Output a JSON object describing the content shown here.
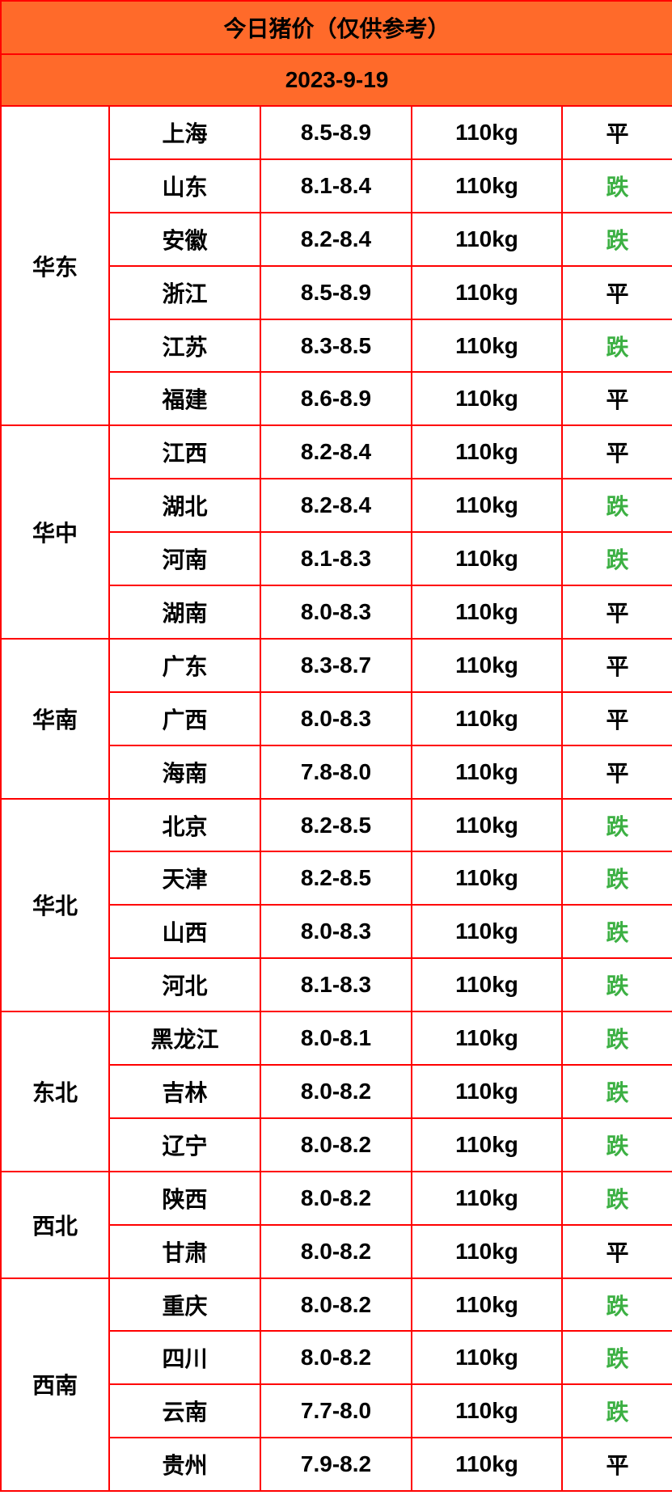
{
  "title": "今日猪价（仅供参考）",
  "date": "2023-9-19",
  "colors": {
    "header_bg": "#ff6a2a",
    "border": "#ff0000",
    "down": "#3cb043",
    "flat": "#000000"
  },
  "regions": [
    {
      "name": "华东",
      "rows": [
        {
          "province": "上海",
          "price": "8.5-8.9",
          "weight": "110kg",
          "trend": "平"
        },
        {
          "province": "山东",
          "price": "8.1-8.4",
          "weight": "110kg",
          "trend": "跌"
        },
        {
          "province": "安徽",
          "price": "8.2-8.4",
          "weight": "110kg",
          "trend": "跌"
        },
        {
          "province": "浙江",
          "price": "8.5-8.9",
          "weight": "110kg",
          "trend": "平"
        },
        {
          "province": "江苏",
          "price": "8.3-8.5",
          "weight": "110kg",
          "trend": "跌"
        },
        {
          "province": "福建",
          "price": "8.6-8.9",
          "weight": "110kg",
          "trend": "平"
        }
      ]
    },
    {
      "name": "华中",
      "rows": [
        {
          "province": "江西",
          "price": "8.2-8.4",
          "weight": "110kg",
          "trend": "平"
        },
        {
          "province": "湖北",
          "price": "8.2-8.4",
          "weight": "110kg",
          "trend": "跌"
        },
        {
          "province": "河南",
          "price": "8.1-8.3",
          "weight": "110kg",
          "trend": "跌"
        },
        {
          "province": "湖南",
          "price": "8.0-8.3",
          "weight": "110kg",
          "trend": "平"
        }
      ]
    },
    {
      "name": "华南",
      "rows": [
        {
          "province": "广东",
          "price": "8.3-8.7",
          "weight": "110kg",
          "trend": "平"
        },
        {
          "province": "广西",
          "price": "8.0-8.3",
          "weight": "110kg",
          "trend": "平"
        },
        {
          "province": "海南",
          "price": "7.8-8.0",
          "weight": "110kg",
          "trend": "平"
        }
      ]
    },
    {
      "name": "华北",
      "rows": [
        {
          "province": "北京",
          "price": "8.2-8.5",
          "weight": "110kg",
          "trend": "跌"
        },
        {
          "province": "天津",
          "price": "8.2-8.5",
          "weight": "110kg",
          "trend": "跌"
        },
        {
          "province": "山西",
          "price": "8.0-8.3",
          "weight": "110kg",
          "trend": "跌"
        },
        {
          "province": "河北",
          "price": "8.1-8.3",
          "weight": "110kg",
          "trend": "跌"
        }
      ]
    },
    {
      "name": "东北",
      "rows": [
        {
          "province": "黑龙江",
          "price": "8.0-8.1",
          "weight": "110kg",
          "trend": "跌"
        },
        {
          "province": "吉林",
          "price": "8.0-8.2",
          "weight": "110kg",
          "trend": "跌"
        },
        {
          "province": "辽宁",
          "price": "8.0-8.2",
          "weight": "110kg",
          "trend": "跌"
        }
      ]
    },
    {
      "name": "西北",
      "rows": [
        {
          "province": "陕西",
          "price": "8.0-8.2",
          "weight": "110kg",
          "trend": "跌"
        },
        {
          "province": "甘肃",
          "price": "8.0-8.2",
          "weight": "110kg",
          "trend": "平"
        }
      ]
    },
    {
      "name": "西南",
      "rows": [
        {
          "province": "重庆",
          "price": "8.0-8.2",
          "weight": "110kg",
          "trend": "跌"
        },
        {
          "province": "四川",
          "price": "8.0-8.2",
          "weight": "110kg",
          "trend": "跌"
        },
        {
          "province": "云南",
          "price": "7.7-8.0",
          "weight": "110kg",
          "trend": "跌"
        },
        {
          "province": "贵州",
          "price": "7.9-8.2",
          "weight": "110kg",
          "trend": "平"
        }
      ]
    }
  ]
}
